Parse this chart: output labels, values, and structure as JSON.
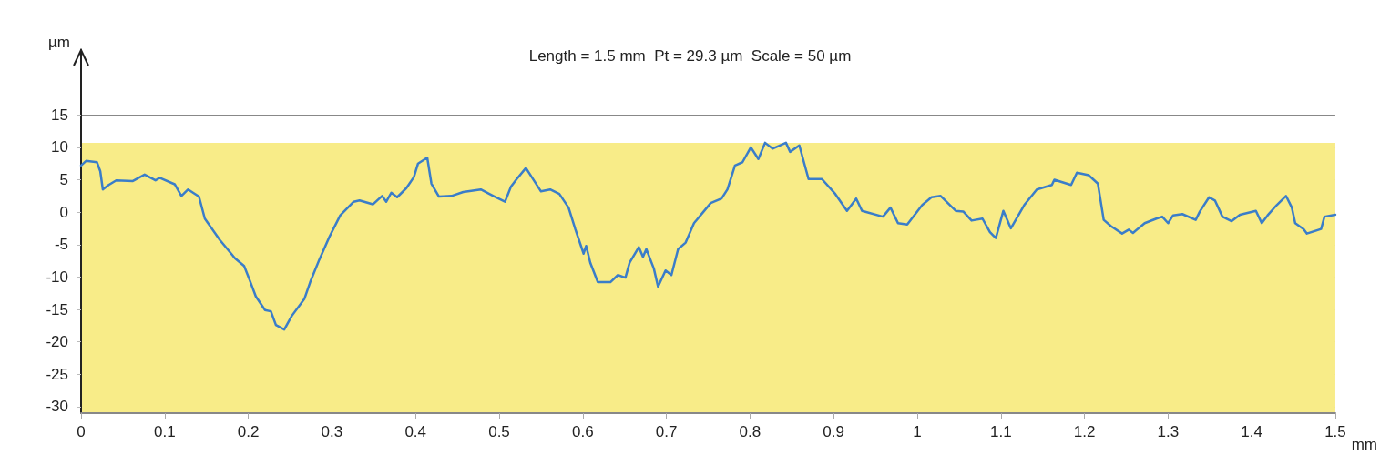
{
  "chart_data": {
    "type": "line",
    "title": "Length = 1.5 mm  Pt = 29.3 µm  Scale = 50 µm",
    "ylabel": "µm",
    "xlabel": "mm",
    "x": [
      0,
      0.006,
      0.019,
      0.023,
      0.026,
      0.033,
      0.042,
      0.062,
      0.076,
      0.089,
      0.094,
      0.112,
      0.12,
      0.128,
      0.141,
      0.148,
      0.166,
      0.184,
      0.195,
      0.202,
      0.209,
      0.22,
      0.227,
      0.233,
      0.243,
      0.252,
      0.267,
      0.274,
      0.285,
      0.297,
      0.31,
      0.326,
      0.333,
      0.349,
      0.36,
      0.365,
      0.371,
      0.378,
      0.389,
      0.398,
      0.403,
      0.414,
      0.419,
      0.428,
      0.443,
      0.457,
      0.478,
      0.493,
      0.507,
      0.514,
      0.521,
      0.532,
      0.539,
      0.55,
      0.561,
      0.572,
      0.583,
      0.591,
      0.601,
      0.604,
      0.609,
      0.618,
      0.633,
      0.642,
      0.651,
      0.656,
      0.667,
      0.672,
      0.676,
      0.685,
      0.69,
      0.699,
      0.706,
      0.714,
      0.723,
      0.733,
      0.744,
      0.753,
      0.766,
      0.773,
      0.782,
      0.791,
      0.801,
      0.81,
      0.818,
      0.827,
      0.843,
      0.848,
      0.859,
      0.87,
      0.886,
      0.902,
      0.916,
      0.927,
      0.934,
      0.959,
      0.968,
      0.977,
      0.988,
      1.006,
      1.017,
      1.028,
      1.046,
      1.055,
      1.065,
      1.078,
      1.087,
      1.094,
      1.103,
      1.112,
      1.128,
      1.143,
      1.161,
      1.164,
      1.184,
      1.191,
      1.205,
      1.216,
      1.223,
      1.232,
      1.245,
      1.253,
      1.258,
      1.272,
      1.286,
      1.293,
      1.3,
      1.306,
      1.317,
      1.333,
      1.338,
      1.349,
      1.356,
      1.365,
      1.376,
      1.386,
      1.405,
      1.412,
      1.419,
      1.43,
      1.441,
      1.448,
      1.452,
      1.462,
      1.466,
      1.483,
      1.487,
      1.5
    ],
    "series": [
      {
        "color": "#3a7dc9",
        "values": [
          7.2,
          7.9,
          7.7,
          6.3,
          3.5,
          4.2,
          4.9,
          4.8,
          5.8,
          4.9,
          5.3,
          4.3,
          2.5,
          3.5,
          2.4,
          -1.0,
          -4.3,
          -7.1,
          -8.3,
          -10.6,
          -13.0,
          -15.1,
          -15.3,
          -17.4,
          -18.1,
          -16.0,
          -13.4,
          -10.8,
          -7.3,
          -3.8,
          -0.5,
          1.6,
          1.8,
          1.2,
          2.5,
          1.6,
          3.0,
          2.3,
          3.7,
          5.4,
          7.5,
          8.4,
          4.4,
          2.4,
          2.5,
          3.1,
          3.5,
          2.5,
          1.6,
          3.9,
          5.1,
          6.8,
          5.4,
          3.2,
          3.5,
          2.8,
          0.7,
          -2.6,
          -6.4,
          -5.2,
          -7.8,
          -10.8,
          -10.8,
          -9.7,
          -10.1,
          -7.8,
          -5.4,
          -6.9,
          -5.7,
          -8.7,
          -11.5,
          -9.0,
          -9.7,
          -5.7,
          -4.7,
          -1.7,
          0.0,
          1.4,
          2.1,
          3.5,
          7.2,
          7.7,
          10.0,
          8.2,
          10.7,
          9.8,
          10.7,
          9.3,
          10.3,
          5.1,
          5.1,
          2.8,
          0.2,
          2.1,
          0.2,
          -0.7,
          0.7,
          -1.7,
          -1.9,
          1.1,
          2.3,
          2.5,
          0.2,
          0.1,
          -1.3,
          -1.0,
          -3.1,
          -4.0,
          0.2,
          -2.5,
          1.1,
          3.5,
          4.2,
          5.0,
          4.2,
          6.1,
          5.7,
          4.4,
          -1.2,
          -2.2,
          -3.3,
          -2.7,
          -3.2,
          -1.7,
          -1.0,
          -0.7,
          -1.7,
          -0.5,
          -0.3,
          -1.2,
          0.1,
          2.3,
          1.8,
          -0.7,
          -1.4,
          -0.4,
          0.2,
          -1.7,
          -0.5,
          1.1,
          2.5,
          0.7,
          -1.7,
          -2.6,
          -3.3,
          -2.6,
          -0.7,
          -0.4
        ]
      }
    ],
    "xlim": [
      0,
      1.5
    ],
    "xticks": [
      0,
      0.1,
      0.2,
      0.3,
      0.4,
      0.5,
      0.6,
      0.7,
      0.8,
      0.9,
      1,
      1.1,
      1.2,
      1.3,
      1.4,
      1.5
    ],
    "ylim": [
      -31,
      25
    ],
    "yticks": [
      -30,
      -25,
      -20,
      -15,
      -10,
      -5,
      0,
      5,
      10,
      15
    ],
    "bands": [
      {
        "axis": "y",
        "from": -31,
        "to": 10.7,
        "color": "#f8ec88"
      }
    ],
    "grid": "y",
    "marker": "none",
    "line_style": "solid"
  }
}
